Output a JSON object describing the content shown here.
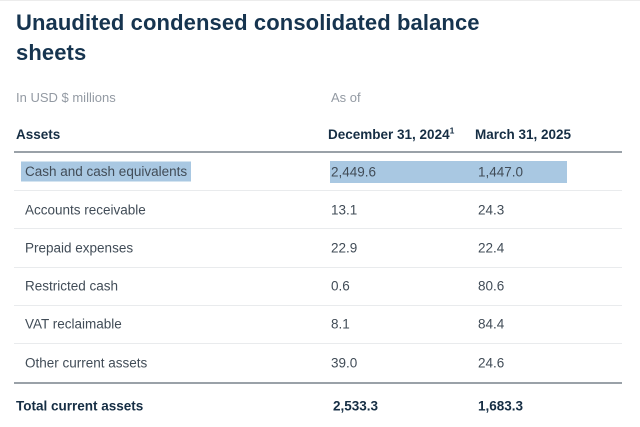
{
  "page": {
    "title": "Unaudited condensed consolidated balance sheets"
  },
  "table": {
    "unit_label": "In USD $ millions",
    "as_of_label": "As of",
    "section_header": "Assets",
    "columns": [
      {
        "label": "December 31, 2024",
        "footnote_marker": "1"
      },
      {
        "label": "March 31, 2025",
        "footnote_marker": ""
      }
    ],
    "rows": [
      {
        "label": "Cash and cash equivalents",
        "dec_31_2024": "2,449.6",
        "mar_31_2025": "1,447.0",
        "highlighted": true
      },
      {
        "label": "Accounts receivable",
        "dec_31_2024": "13.1",
        "mar_31_2025": "24.3",
        "highlighted": false
      },
      {
        "label": "Prepaid expenses",
        "dec_31_2024": "22.9",
        "mar_31_2025": "22.4",
        "highlighted": false
      },
      {
        "label": "Restricted cash",
        "dec_31_2024": "0.6",
        "mar_31_2025": "80.6",
        "highlighted": false
      },
      {
        "label": "VAT reclaimable",
        "dec_31_2024": "8.1",
        "mar_31_2025": "84.4",
        "highlighted": false
      },
      {
        "label": "Other current assets",
        "dec_31_2024": "39.0",
        "mar_31_2025": "24.6",
        "highlighted": false
      }
    ],
    "total_row": {
      "label": "Total current assets",
      "dec_31_2024": "2,533.3",
      "mar_31_2025": "1,683.3"
    }
  },
  "colors": {
    "title_text": "#16344f",
    "header_text": "#162e44",
    "body_text": "#414c57",
    "muted_text": "#939aa3",
    "divider_light": "#e9ebed",
    "divider_dark": "#9aa1a8",
    "selection_highlight": "#a9c8e2"
  }
}
